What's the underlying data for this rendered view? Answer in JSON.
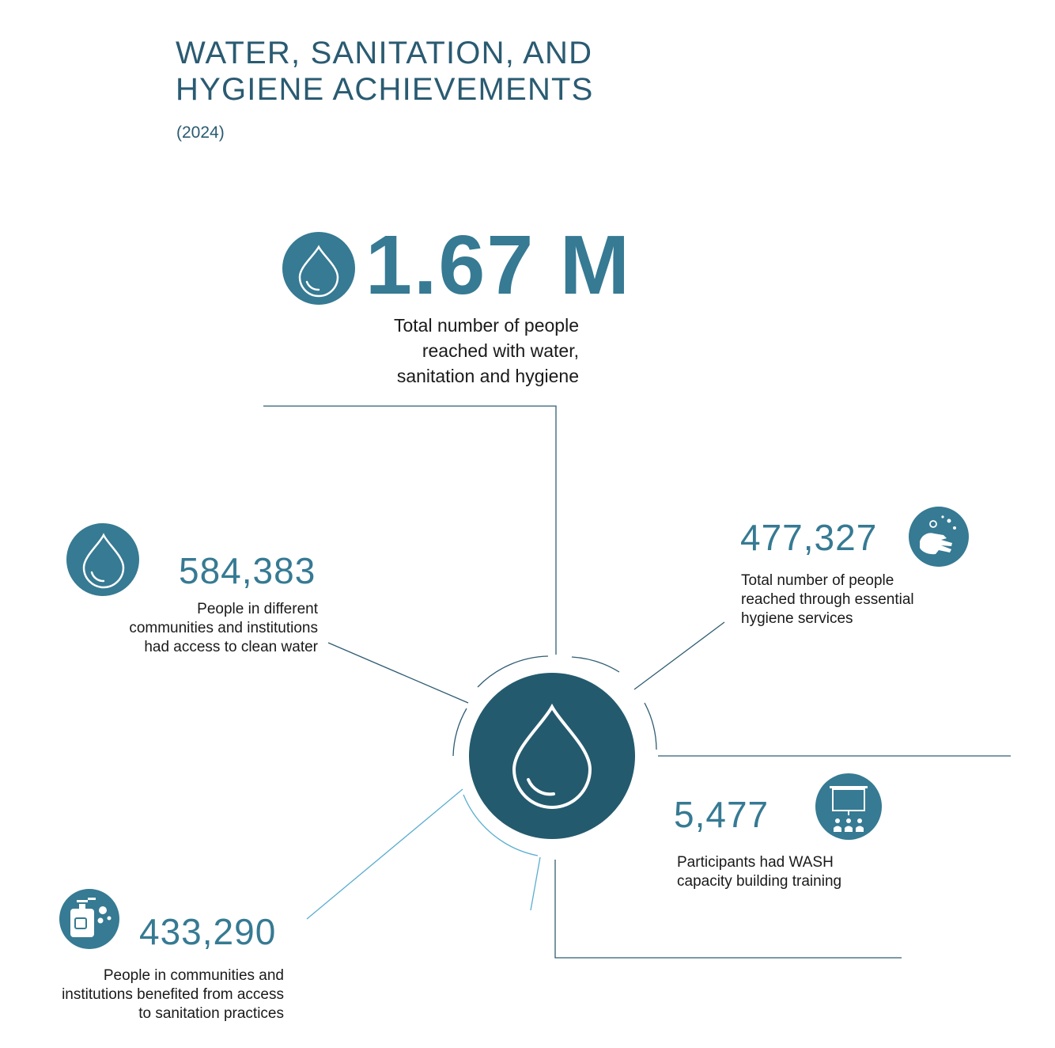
{
  "header": {
    "title_line1": "WATER, SANITATION, AND",
    "title_line2": "HYGIENE ACHIEVEMENTS",
    "year": "(2024)"
  },
  "total": {
    "value": "1.67 M",
    "description_lines": [
      "Total number of people",
      "reached with water,",
      "sanitation and hygiene"
    ],
    "icon": "water-drop-icon"
  },
  "clean_water": {
    "value": "584,383",
    "description_lines": [
      "People in different",
      "communities and institutions",
      "had access to clean water"
    ],
    "icon": "water-drop-icon"
  },
  "hygiene": {
    "value": "477,327",
    "description_lines": [
      "Total number of people",
      "reached through essential",
      "hygiene services"
    ],
    "icon": "handwashing-icon"
  },
  "training": {
    "value": "5,477",
    "description_lines": [
      "Participants had WASH",
      "capacity building training"
    ],
    "icon": "training-presentation-icon"
  },
  "sanitation": {
    "value": "433,290",
    "description_lines": [
      "People in communities and",
      "institutions benefited from access",
      "to sanitation practices"
    ],
    "icon": "soap-bottle-icon"
  },
  "colors": {
    "title": "#2a5b72",
    "accent": "#367a93",
    "hub": "#245a6e",
    "line_dark": "#2f5d73",
    "line_light": "#5aaed0"
  }
}
